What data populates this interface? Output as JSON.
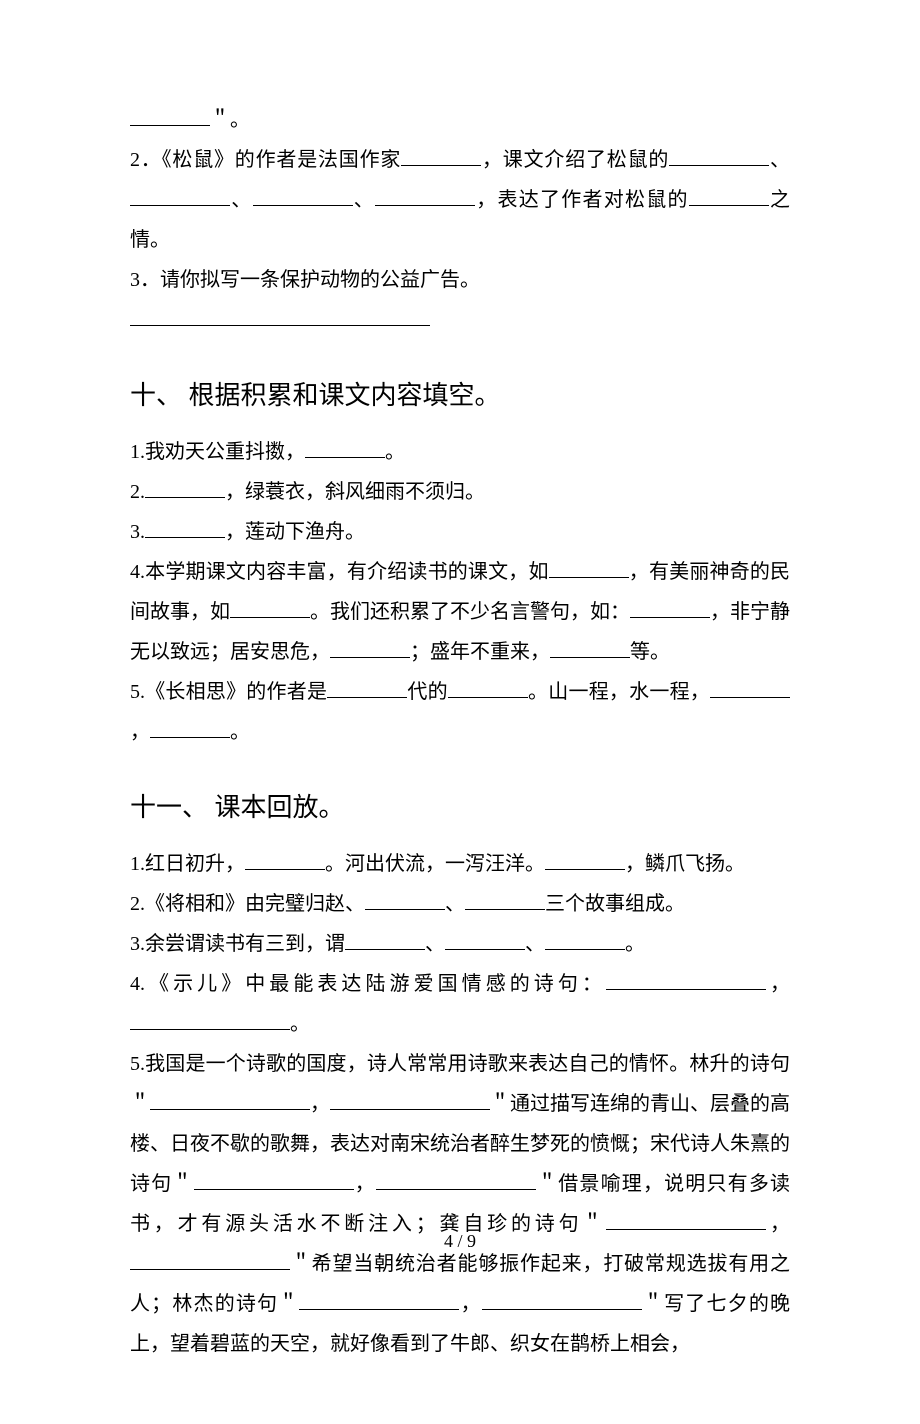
{
  "frag_top": {
    "trail": "＂。"
  },
  "q2": {
    "pre": "2．《松鼠》的作者是法国作家",
    "mid1": "，课文介绍了松鼠的",
    "sep": "、",
    "mid2": "，表达了作者对松鼠的",
    "tail": "之情。"
  },
  "q3": {
    "text": "3．请你拟写一条保护动物的公益广告。"
  },
  "section10": {
    "heading": "十、 根据积累和课文内容填空。",
    "i1_a": "1.我劝天公重抖擞，",
    "i1_b": "。",
    "i2_a": "2.",
    "i2_b": "，绿蓑衣，斜风细雨不须归。",
    "i3_a": "3.",
    "i3_b": "，莲动下渔舟。",
    "i4_a": "4.本学期课文内容丰富，有介绍读书的课文，如",
    "i4_b": "，有美丽神奇的民间故事，如",
    "i4_c": "。我们还积累了不少名言警句，如：",
    "i4_d": "，非宁静无以致远；居安思危，",
    "i4_e": "；盛年不重来，",
    "i4_f": "等。",
    "i5_a": "5.《长相思》的作者是",
    "i5_b": "代的",
    "i5_c": "。山一程，水一程，",
    "i5_d": "，",
    "i5_e": "。"
  },
  "section11": {
    "heading": "十一、 课本回放。",
    "i1_a": "1.红日初升，",
    "i1_b": "。河出伏流，一泻汪洋。",
    "i1_c": "，鳞爪飞扬。",
    "i2_a": "2.《将相和》由完璧归赵、",
    "i2_b": "、",
    "i2_c": "三个故事组成。",
    "i3_a": "3.余尝谓读书有三到，谓",
    "i3_b": "、",
    "i3_c": "、",
    "i3_d": "。",
    "i4_a": "4.《示儿》中最能表达陆游爱国情感的诗句：",
    "i4_b": "，",
    "i4_c": "。",
    "i5_a": "5.我国是一个诗歌的国度，诗人常常用诗歌来表达自己的情怀。林升的诗句＂",
    "i5_b": "，",
    "i5_c": "＂通过描写连绵的青山、层叠的高楼、日夜不歇的歌舞，表达对南宋统治者醉生梦死的愤慨；宋代诗人朱熹的诗句＂",
    "i5_d": "，",
    "i5_e": "＂借景喻理，说明只有多读书，才有源头活水不断注入；龚自珍的诗句＂",
    "i5_f": "，",
    "i5_g": "＂希望当朝统治者能够振作起来，打破常规选拔有用之人；林杰的诗句＂",
    "i5_h": "，",
    "i5_i": "＂写了七夕的晚上，望着碧蓝的天空，就好像看到了牛郎、织女在鹊桥上相会，"
  },
  "footer": "4 / 9"
}
